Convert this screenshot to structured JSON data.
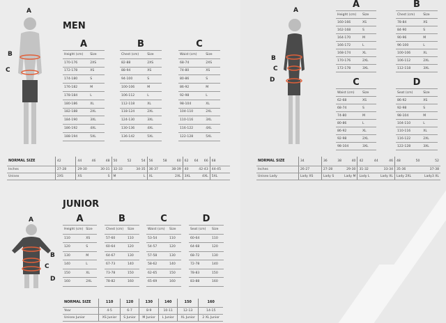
{
  "men": {
    "title": "MEN",
    "tables": [
      {
        "letter": "A",
        "headers": [
          "Height (cm)",
          "Size"
        ],
        "rows": [
          [
            "170-176",
            "2XS"
          ],
          [
            "172-178",
            "XS"
          ],
          [
            "174-180",
            "S"
          ],
          [
            "176-182",
            "M"
          ],
          [
            "178-184",
            "L"
          ],
          [
            "180-186",
            "XL"
          ],
          [
            "182-188",
            "2XL"
          ],
          [
            "184-190",
            "3XL"
          ],
          [
            "186-192",
            "4XL"
          ],
          [
            "188-194",
            "5XL"
          ]
        ]
      },
      {
        "letter": "B",
        "headers": [
          "Chest (cm)",
          "Size"
        ],
        "rows": [
          [
            "82-88",
            "2XS"
          ],
          [
            "88-94",
            "XS"
          ],
          [
            "94-100",
            "S"
          ],
          [
            "100-106",
            "M"
          ],
          [
            "106-112",
            "L"
          ],
          [
            "112-118",
            "XL"
          ],
          [
            "118-124",
            "2XL"
          ],
          [
            "124-130",
            "3XL"
          ],
          [
            "130-136",
            "4XL"
          ],
          [
            "136-142",
            "5XL"
          ]
        ]
      },
      {
        "letter": "C",
        "headers": [
          "Waist (cm)",
          "Size"
        ],
        "rows": [
          [
            "68-74",
            "2XS"
          ],
          [
            "74-80",
            "XS"
          ],
          [
            "80-86",
            "S"
          ],
          [
            "86-92",
            "M"
          ],
          [
            "92-98",
            "L"
          ],
          [
            "98-104",
            "XL"
          ],
          [
            "104-110",
            "2XL"
          ],
          [
            "110-116",
            "3XL"
          ],
          [
            "116-122",
            "4XL"
          ],
          [
            "122-128",
            "5XL"
          ]
        ]
      }
    ],
    "normal": {
      "label": "NORMAL SIZE",
      "groups": [
        {
          "sizes": [
            "42"
          ],
          "inches": [
            "27-28"
          ],
          "unisex": [
            "2XS"
          ]
        },
        {
          "sizes": [
            "44",
            "46",
            "48"
          ],
          "inches": [
            "29-30",
            "30-31"
          ],
          "unisex": [
            "XS",
            "S"
          ]
        },
        {
          "sizes": [
            "50",
            "52",
            "54"
          ],
          "inches": [
            "32-33",
            "34-35"
          ],
          "unisex": [
            "M",
            "L"
          ]
        },
        {
          "sizes": [
            "56",
            "58",
            "60"
          ],
          "inches": [
            "36-37",
            "38-39"
          ],
          "unisex": [
            "XL",
            "2XL"
          ]
        },
        {
          "sizes": [
            "62",
            "64",
            "66"
          ],
          "inches": [
            "40",
            "42-43"
          ],
          "unisex": [
            "3XL",
            "4XL"
          ]
        },
        {
          "sizes": [
            "68"
          ],
          "inches": [
            "44-45"
          ],
          "unisex": [
            "5XL"
          ]
        }
      ],
      "row2": "Inches",
      "row3": "Unisex"
    },
    "figure_letters": [
      "A",
      "B",
      "C"
    ]
  },
  "women": {
    "tables": [
      {
        "letter": "A",
        "headers": [
          "Height (cm)",
          "Size"
        ],
        "rows": [
          [
            "160-166",
            "XS"
          ],
          [
            "162-168",
            "S"
          ],
          [
            "164-170",
            "M"
          ],
          [
            "166-172",
            "L"
          ],
          [
            "168-174",
            "XL"
          ],
          [
            "170-176",
            "2XL"
          ],
          [
            "172-178",
            "3XL"
          ]
        ]
      },
      {
        "letter": "B",
        "headers": [
          "Chest (cm)",
          "Size"
        ],
        "rows": [
          [
            "78-84",
            "XS"
          ],
          [
            "84-90",
            "S"
          ],
          [
            "90-96",
            "M"
          ],
          [
            "96-100",
            "L"
          ],
          [
            "100-106",
            "XL"
          ],
          [
            "106-112",
            "2XL"
          ],
          [
            "112-118",
            "3XL"
          ]
        ]
      },
      {
        "letter": "C",
        "headers": [
          "Waist (cm)",
          "Size"
        ],
        "rows": [
          [
            "62-68",
            "XS"
          ],
          [
            "68-74",
            "S"
          ],
          [
            "74-80",
            "M"
          ],
          [
            "80-86",
            "L"
          ],
          [
            "86-92",
            "XL"
          ],
          [
            "92-98",
            "2XL"
          ],
          [
            "98-104",
            "3XL"
          ]
        ]
      },
      {
        "letter": "D",
        "headers": [
          "Seat (cm)",
          "Size"
        ],
        "rows": [
          [
            "86-92",
            "XS"
          ],
          [
            "92-98",
            "S"
          ],
          [
            "98-104",
            "M"
          ],
          [
            "104-110",
            "L"
          ],
          [
            "110-116",
            "XL"
          ],
          [
            "116-122",
            "2XL"
          ],
          [
            "122-128",
            "3XL"
          ]
        ]
      }
    ],
    "normal": {
      "label": "NORMAL SIZE",
      "groups": [
        {
          "sizes": [
            "34"
          ],
          "inches": [
            "26-27"
          ],
          "unisex": [
            "Lady XS"
          ]
        },
        {
          "sizes": [
            "36",
            "38",
            "40"
          ],
          "inches": [
            "27-28",
            "29-30"
          ],
          "unisex": [
            "Lady S",
            "Lady M"
          ]
        },
        {
          "sizes": [
            "42",
            "44",
            "46"
          ],
          "inches": [
            "31-32",
            "33-34"
          ],
          "unisex": [
            "Lady L",
            "Lady XL"
          ]
        },
        {
          "sizes": [
            "48",
            "50",
            "52"
          ],
          "inches": [
            "35-36",
            "37-38"
          ],
          "unisex": [
            "Lady 2XL",
            "Lady3 XL"
          ]
        }
      ],
      "row2": "Inches",
      "row3": "Unisex Lady"
    },
    "figure_letters": [
      "A",
      "B",
      "C",
      "D"
    ]
  },
  "junior": {
    "title": "JUNIOR",
    "tables": [
      {
        "letter": "A",
        "headers": [
          "Height (cm)",
          "Size"
        ],
        "rows": [
          [
            "110",
            "XS"
          ],
          [
            "120",
            "S"
          ],
          [
            "130",
            "M"
          ],
          [
            "140",
            "L"
          ],
          [
            "150",
            "XL"
          ],
          [
            "160",
            "2XL"
          ]
        ]
      },
      {
        "letter": "B",
        "headers": [
          "Chest (cm)",
          "Size"
        ],
        "rows": [
          [
            "57-60",
            "110"
          ],
          [
            "60-64",
            "120"
          ],
          [
            "64-67",
            "130"
          ],
          [
            "67-73",
            "140"
          ],
          [
            "73-78",
            "150"
          ],
          [
            "78-82",
            "160"
          ]
        ]
      },
      {
        "letter": "C",
        "headers": [
          "Waist (cm)",
          "Size"
        ],
        "rows": [
          [
            "53-54",
            "110"
          ],
          [
            "54-57",
            "120"
          ],
          [
            "57-58",
            "130"
          ],
          [
            "58-62",
            "140"
          ],
          [
            "62-65",
            "150"
          ],
          [
            "65-69",
            "160"
          ]
        ]
      },
      {
        "letter": "D",
        "headers": [
          "Seat (cm)",
          "Size"
        ],
        "rows": [
          [
            "60-64",
            "110"
          ],
          [
            "64-68",
            "120"
          ],
          [
            "68-72",
            "130"
          ],
          [
            "72-78",
            "140"
          ],
          [
            "78-83",
            "150"
          ],
          [
            "83-88",
            "160"
          ]
        ]
      }
    ],
    "normal": {
      "label": "NORMAL SIZE",
      "sizes": [
        "110",
        "120",
        "130",
        "140",
        "150",
        "160"
      ],
      "row2": "Year",
      "years": [
        "4-5",
        "6-7",
        "8-9",
        "10-11",
        "12-13",
        "14-15"
      ],
      "row3": "Unisex Junior",
      "unisex": [
        "XS Junior",
        "S Junior",
        "M Junior",
        "L Junior",
        "XL Junior",
        "2 XL Junior"
      ]
    },
    "figure_letters": [
      "A",
      "B",
      "C",
      "D"
    ]
  },
  "colors": {
    "background": "#ececec",
    "text": "#333333",
    "rule": "#9a9a9a",
    "figure": "#4a4a4a",
    "measure_band": "#e0603a"
  }
}
